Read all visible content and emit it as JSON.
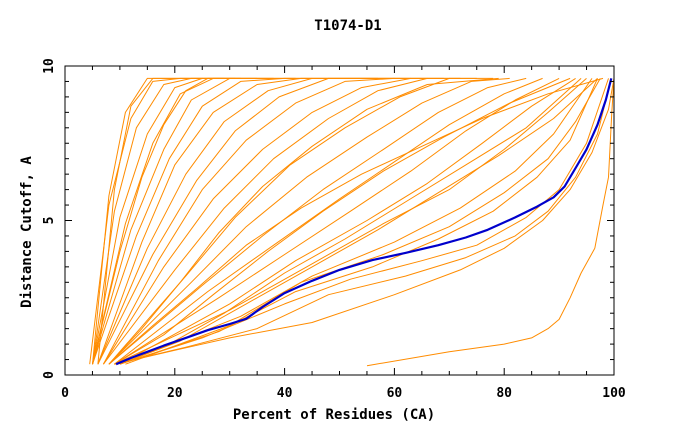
{
  "chart_data": {
    "type": "line",
    "title": "T1074-D1",
    "xlabel": "Percent of Residues (CA)",
    "ylabel": "Distance Cutoff, A",
    "xlim": [
      0,
      100
    ],
    "ylim": [
      0,
      10
    ],
    "x_ticks": [
      "0",
      "20",
      "40",
      "60",
      "80",
      "100"
    ],
    "y_ticks": [
      "0",
      "5",
      "10"
    ],
    "grid": false,
    "legend": "none",
    "colors": {
      "models": "#ff8c00",
      "highlight": "#0000cc",
      "axes": "#000000"
    },
    "highlight_series": {
      "x": [
        9.3,
        12,
        15,
        18,
        22,
        26,
        30,
        33,
        36,
        40,
        45,
        50,
        56,
        62,
        68,
        73,
        77,
        82,
        86,
        89,
        91,
        93,
        95,
        97,
        98.5,
        99.5
      ],
      "y": [
        0.35,
        0.55,
        0.75,
        0.95,
        1.2,
        1.45,
        1.65,
        1.82,
        2.2,
        2.65,
        3.05,
        3.4,
        3.72,
        3.95,
        4.2,
        4.45,
        4.7,
        5.1,
        5.45,
        5.75,
        6.1,
        6.7,
        7.3,
        8.1,
        8.9,
        9.6
      ]
    },
    "model_series": [
      {
        "x": [
          55,
          70,
          80,
          85,
          88,
          90,
          92,
          94,
          96.5
        ],
        "y": [
          0.3,
          0.75,
          1.0,
          1.2,
          1.5,
          1.8,
          2.5,
          3.3,
          4.1
        ]
      },
      {
        "x": [
          96.5,
          98,
          99,
          99.6,
          100
        ],
        "y": [
          4.1,
          5.5,
          6.4,
          8.5,
          9.6
        ]
      },
      {
        "x": [
          9,
          20,
          30,
          45,
          60,
          72,
          80,
          87,
          92,
          96,
          99,
          100
        ],
        "y": [
          0.35,
          0.8,
          1.2,
          1.7,
          2.6,
          3.4,
          4.1,
          5.0,
          6.0,
          7.2,
          8.6,
          9.6
        ]
      },
      {
        "x": [
          9,
          22,
          35,
          48,
          62,
          73,
          82,
          88,
          93,
          97,
          99.5
        ],
        "y": [
          0.35,
          0.9,
          1.5,
          2.6,
          3.2,
          3.8,
          4.5,
          5.3,
          6.4,
          7.8,
          9.6
        ]
      },
      {
        "x": [
          10,
          25,
          40,
          52,
          65,
          75,
          84,
          90,
          95,
          99
        ],
        "y": [
          0.35,
          1.2,
          2.3,
          3.1,
          3.7,
          4.2,
          5.1,
          6.0,
          7.5,
          9.6
        ]
      },
      {
        "x": [
          10,
          28,
          42,
          56,
          68,
          78,
          86,
          92,
          97
        ],
        "y": [
          0.35,
          1.4,
          2.7,
          3.5,
          4.4,
          5.3,
          6.4,
          7.6,
          9.6
        ]
      },
      {
        "x": [
          11,
          30,
          43,
          58,
          70,
          80,
          88,
          93,
          97.5
        ],
        "y": [
          0.35,
          1.6,
          3.0,
          3.9,
          4.8,
          5.9,
          7.0,
          8.2,
          9.6
        ]
      },
      {
        "x": [
          10,
          32,
          45,
          60,
          72,
          82,
          89,
          96
        ],
        "y": [
          0.35,
          1.9,
          3.2,
          4.3,
          5.4,
          6.6,
          7.8,
          9.6
        ]
      },
      {
        "x": [
          9,
          30,
          44,
          58,
          70,
          80,
          88,
          95
        ],
        "y": [
          0.35,
          2.1,
          3.5,
          4.9,
          6.0,
          7.3,
          8.5,
          9.6
        ]
      },
      {
        "x": [
          10,
          30,
          42,
          55,
          66,
          76,
          85,
          93
        ],
        "y": [
          0.35,
          2.3,
          3.7,
          5.0,
          6.2,
          7.5,
          8.7,
          9.6
        ]
      },
      {
        "x": [
          9,
          28,
          40,
          52,
          63,
          73,
          82,
          90
        ],
        "y": [
          0.35,
          2.5,
          3.9,
          5.3,
          6.6,
          7.9,
          8.9,
          9.6
        ]
      },
      {
        "x": [
          9,
          26,
          38,
          50,
          60,
          70,
          80,
          87
        ],
        "y": [
          0.35,
          2.7,
          4.2,
          5.7,
          6.9,
          8.1,
          9.1,
          9.6
        ]
      },
      {
        "x": [
          8,
          25,
          36,
          47,
          58,
          68,
          77,
          84
        ],
        "y": [
          0.35,
          2.9,
          4.5,
          6.0,
          7.3,
          8.5,
          9.3,
          9.6
        ]
      },
      {
        "x": [
          8,
          23,
          33,
          44,
          55,
          65,
          74,
          81
        ],
        "y": [
          0.35,
          3.0,
          4.8,
          6.4,
          7.7,
          8.8,
          9.5,
          9.6
        ]
      },
      {
        "x": [
          8,
          22,
          31,
          41,
          51,
          61,
          70,
          78
        ],
        "y": [
          0.35,
          3.2,
          5.1,
          6.8,
          8.0,
          9.0,
          9.6,
          9.6
        ]
      },
      {
        "x": [
          7,
          20,
          29,
          38,
          48,
          57,
          66,
          75
        ],
        "y": [
          0.35,
          3.4,
          5.4,
          7.0,
          8.3,
          9.2,
          9.6,
          9.6
        ]
      },
      {
        "x": [
          7,
          18,
          27,
          36,
          45,
          54,
          63,
          72
        ],
        "y": [
          0.35,
          3.5,
          5.7,
          7.3,
          8.5,
          9.3,
          9.6,
          9.6
        ]
      },
      {
        "x": [
          7,
          17,
          25,
          33,
          42,
          51,
          60,
          69
        ],
        "y": [
          0.35,
          3.7,
          6.0,
          7.6,
          8.8,
          9.5,
          9.6,
          9.6
        ]
      },
      {
        "x": [
          6,
          16,
          24,
          31,
          39,
          48,
          57,
          66
        ],
        "y": [
          0.35,
          3.9,
          6.3,
          7.9,
          9.0,
          9.6,
          9.6,
          9.6
        ]
      },
      {
        "x": [
          6,
          15,
          22,
          29,
          37,
          45,
          54,
          63
        ],
        "y": [
          0.35,
          4.1,
          6.5,
          8.2,
          9.2,
          9.6,
          9.6,
          9.6
        ]
      },
      {
        "x": [
          6,
          14,
          20,
          27,
          35,
          43,
          51,
          60
        ],
        "y": [
          0.35,
          4.3,
          6.8,
          8.5,
          9.4,
          9.6,
          9.6,
          9.6
        ]
      },
      {
        "x": [
          5,
          13,
          19,
          25,
          32,
          40,
          48,
          57
        ],
        "y": [
          0.35,
          4.5,
          7.0,
          8.7,
          9.5,
          9.6,
          9.6,
          9.6
        ]
      },
      {
        "x": [
          5,
          12,
          18,
          23,
          30,
          37,
          45
        ],
        "y": [
          0.35,
          4.7,
          7.3,
          8.9,
          9.6,
          9.6,
          9.6
        ]
      },
      {
        "x": [
          5,
          11,
          16,
          21,
          27,
          34,
          42
        ],
        "y": [
          0.35,
          4.9,
          7.5,
          9.1,
          9.6,
          9.6,
          9.6
        ]
      },
      {
        "x": [
          5,
          10,
          15,
          20,
          25,
          31,
          38
        ],
        "y": [
          0.35,
          5.1,
          7.8,
          9.3,
          9.6,
          9.6,
          9.6
        ]
      },
      {
        "x": [
          5,
          9,
          13,
          18,
          23,
          29,
          35
        ],
        "y": [
          0.35,
          5.3,
          8.0,
          9.4,
          9.6,
          9.6,
          9.6
        ]
      },
      {
        "x": [
          4.5,
          8,
          12,
          16,
          21,
          26,
          32
        ],
        "y": [
          0.35,
          5.5,
          8.3,
          9.5,
          9.6,
          9.6,
          9.6
        ]
      },
      {
        "x": [
          5,
          8,
          11,
          15,
          19,
          24,
          29
        ],
        "y": [
          0.35,
          5.8,
          8.5,
          9.6,
          9.6,
          9.6,
          9.6
        ]
      },
      {
        "x": [
          6,
          9,
          12,
          16,
          20,
          25
        ],
        "y": [
          0.35,
          6.0,
          8.7,
          9.6,
          9.6,
          9.6
        ]
      },
      {
        "x": [
          5,
          10,
          14,
          18,
          22,
          26,
          31
        ],
        "y": [
          0.35,
          4.0,
          6.4,
          8.1,
          9.2,
          9.6,
          9.6
        ]
      },
      {
        "x": [
          8,
          14,
          21,
          28,
          36,
          45,
          55,
          66,
          79
        ],
        "y": [
          0.35,
          1.5,
          3.0,
          4.6,
          6.1,
          7.4,
          8.6,
          9.4,
          9.6
        ]
      },
      {
        "x": [
          9,
          18,
          27,
          37,
          47,
          58,
          69,
          81,
          92
        ],
        "y": [
          0.35,
          1.3,
          2.6,
          4.0,
          5.3,
          6.6,
          7.7,
          8.8,
          9.6
        ]
      },
      {
        "x": [
          10,
          21,
          33,
          45,
          57,
          68,
          79,
          89,
          97
        ],
        "y": [
          0.35,
          1.1,
          2.3,
          3.5,
          4.7,
          5.9,
          7.1,
          8.3,
          9.6
        ]
      },
      {
        "x": [
          9,
          19,
          29,
          40,
          51,
          62,
          73,
          84,
          94
        ],
        "y": [
          0.35,
          1.0,
          2.0,
          3.3,
          4.4,
          5.6,
          6.8,
          8.0,
          9.6
        ]
      },
      {
        "x": [
          8,
          16,
          24,
          33,
          43,
          54,
          65,
          76,
          88,
          98
        ],
        "y": [
          0.35,
          1.6,
          2.8,
          4.2,
          5.4,
          6.5,
          7.4,
          8.3,
          9.1,
          9.6
        ]
      }
    ]
  }
}
